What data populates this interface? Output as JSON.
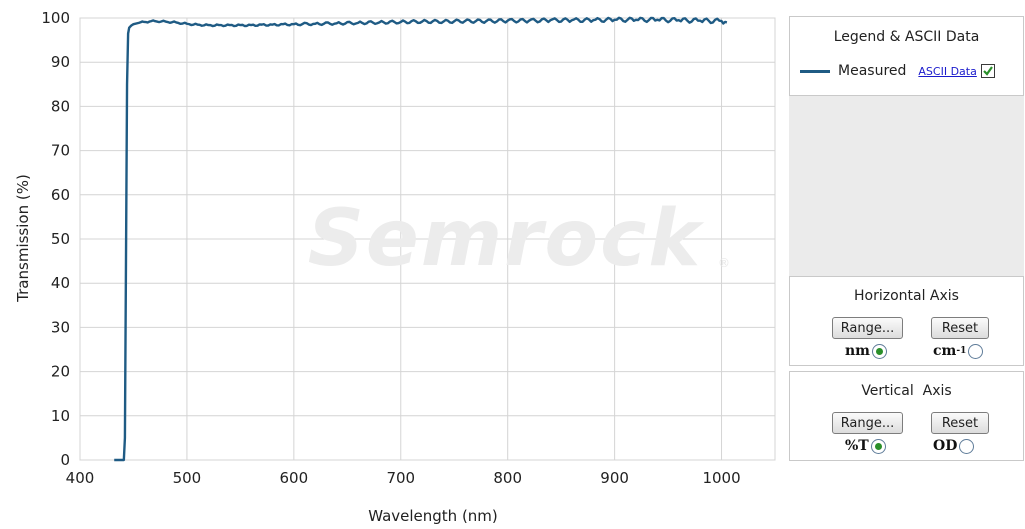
{
  "chart_data": {
    "type": "line",
    "title": "",
    "xlabel": "Wavelength (nm)",
    "ylabel": "Transmission (%)",
    "xlim": [
      400,
      1050
    ],
    "ylim": [
      0,
      100
    ],
    "x_ticks": [
      "400",
      "500",
      "600",
      "700",
      "800",
      "900",
      "1000"
    ],
    "y_ticks": [
      "0",
      "10",
      "20",
      "30",
      "40",
      "50",
      "60",
      "70",
      "80",
      "90",
      "100"
    ],
    "grid": true,
    "watermark": "Semrock",
    "watermark_mark": "®",
    "series": [
      {
        "name": "Measured",
        "color": "#1f5b84",
        "x": [
          432,
          435,
          438,
          441,
          442,
          443,
          444,
          445,
          446,
          448,
          450,
          455,
          460,
          465,
          470,
          480,
          490,
          500,
          510,
          520,
          530,
          540,
          550,
          560,
          570,
          580,
          590,
          600,
          620,
          640,
          660,
          680,
          700,
          720,
          740,
          760,
          780,
          800,
          820,
          840,
          860,
          880,
          900,
          920,
          940,
          960,
          980,
          1000,
          1005
        ],
        "y": [
          0,
          0,
          0,
          0,
          5,
          45,
          85,
          96.5,
          97.8,
          98.3,
          98.6,
          98.9,
          99.1,
          99.2,
          99.3,
          99.2,
          99.0,
          98.7,
          98.5,
          98.4,
          98.4,
          98.4,
          98.4,
          98.4,
          98.5,
          98.5,
          98.6,
          98.6,
          98.7,
          98.8,
          98.9,
          99.0,
          99.1,
          99.2,
          99.2,
          99.3,
          99.3,
          99.4,
          99.4,
          99.5,
          99.5,
          99.5,
          99.6,
          99.6,
          99.6,
          99.5,
          99.4,
          99.3,
          99.0
        ]
      }
    ]
  },
  "legend_panel": {
    "title": "Legend & ASCII Data",
    "series_label": "Measured",
    "ascii_link": "ASCII Data",
    "checkbox_checked": true
  },
  "horizontal_axis_panel": {
    "title": "Horizontal Axis",
    "range_button": "Range...",
    "reset_button": "Reset",
    "option1_label": "nm",
    "option2_label": "cm",
    "option2_exponent": "-1",
    "selected": "nm"
  },
  "vertical_axis_panel": {
    "title": "Vertical  Axis",
    "range_button": "Range...",
    "reset_button": "Reset",
    "option1_label": "%T",
    "option2_label": "OD",
    "selected": "%T"
  }
}
